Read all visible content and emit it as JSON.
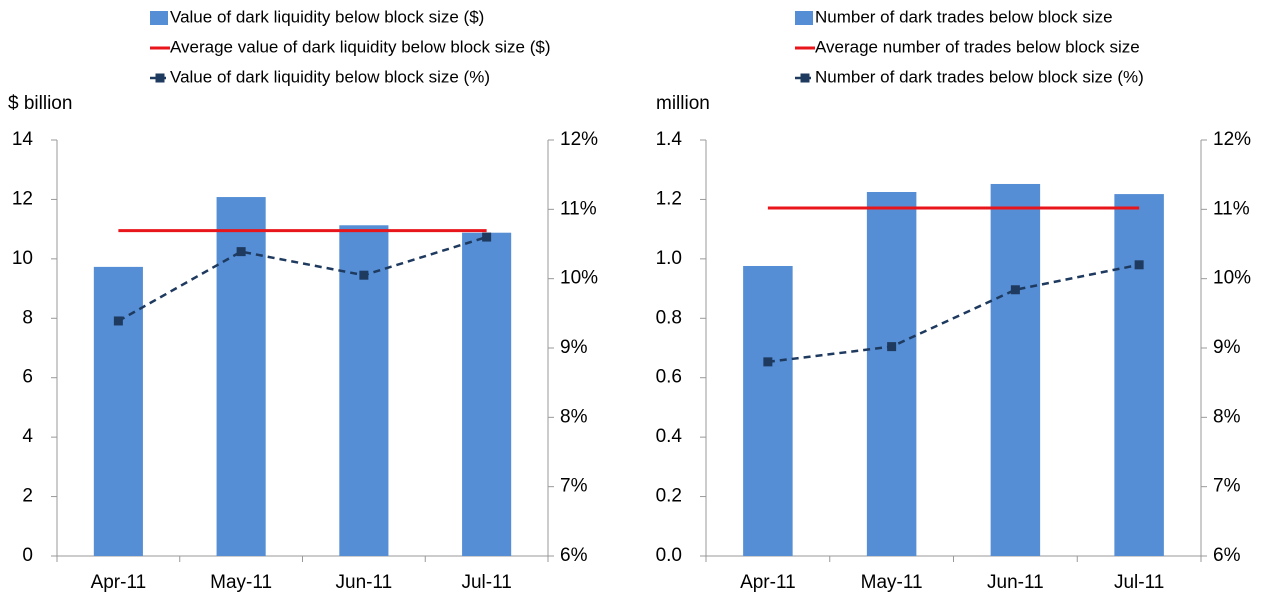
{
  "chart_data": [
    {
      "type": "bar",
      "y_label": "$ billion",
      "categories": [
        "Apr-11",
        "May-11",
        "Jun-11",
        "Jul-11"
      ],
      "series": [
        {
          "name": "Value of dark liquidity below block size ($)",
          "type": "bar",
          "color": "#558ed5",
          "values": [
            9.73,
            12.08,
            11.13,
            10.88
          ]
        },
        {
          "name": "Average value of dark liquidity below block size ($)",
          "type": "line",
          "color": "#e8161b",
          "values": [
            10.95,
            10.95,
            10.95,
            10.95
          ]
        },
        {
          "name": "Value of dark liquidity below block size (%)",
          "type": "line",
          "dashed": true,
          "marker": "square",
          "color": "#1f3a5f",
          "axis": "y2",
          "values": [
            9.39,
            10.39,
            10.05,
            10.6
          ]
        }
      ],
      "ylim": [
        0,
        14
      ],
      "yticks": [
        0,
        2,
        4,
        6,
        8,
        10,
        12,
        14
      ],
      "y2lim": [
        6,
        12
      ],
      "y2ticks": [
        {
          "value": 6,
          "label": "6%"
        },
        {
          "value": 7,
          "label": "7%"
        },
        {
          "value": 8,
          "label": "8%"
        },
        {
          "value": 9,
          "label": "9%"
        },
        {
          "value": 10,
          "label": "10%"
        },
        {
          "value": 11,
          "label": "11%"
        },
        {
          "value": 12,
          "label": "12%"
        }
      ],
      "grid": false
    },
    {
      "type": "bar",
      "y_label": "million",
      "categories": [
        "Apr-11",
        "May-11",
        "Jun-11",
        "Jul-11"
      ],
      "series": [
        {
          "name": "Number of dark trades below block size",
          "type": "bar",
          "color": "#558ed5",
          "values": [
            0.976,
            1.225,
            1.252,
            1.218
          ]
        },
        {
          "name": "Average number of trades below block size",
          "type": "line",
          "color": "#e8161b",
          "values": [
            1.171,
            1.171,
            1.171,
            1.171
          ]
        },
        {
          "name": "Number of dark trades below block size (%)",
          "type": "line",
          "dashed": true,
          "marker": "square",
          "color": "#1f3a5f",
          "axis": "y2",
          "values": [
            8.8,
            9.02,
            9.84,
            10.2
          ]
        }
      ],
      "ylim": [
        0,
        1.4
      ],
      "yticks": [
        {
          "value": 0,
          "label": "0.0"
        },
        0.2,
        0.4,
        0.6,
        0.8,
        {
          "value": 1,
          "label": "1.0"
        },
        1.2,
        1.4
      ],
      "y2lim": [
        6,
        12
      ],
      "y2ticks": [
        {
          "value": 6,
          "label": "6%"
        },
        {
          "value": 7,
          "label": "7%"
        },
        {
          "value": 8,
          "label": "8%"
        },
        {
          "value": 9,
          "label": "9%"
        },
        {
          "value": 10,
          "label": "10%"
        },
        {
          "value": 11,
          "label": "11%"
        },
        {
          "value": 12,
          "label": "12%"
        }
      ],
      "grid": false
    }
  ]
}
